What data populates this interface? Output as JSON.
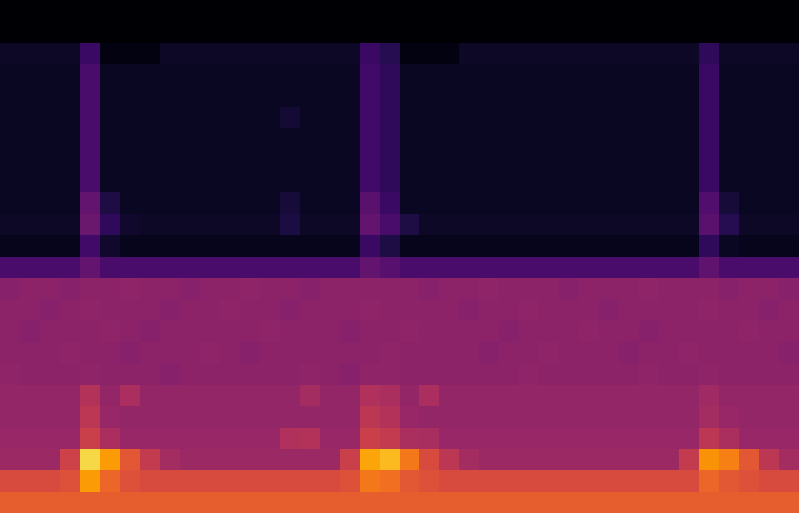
{
  "chart_data": {
    "type": "heatmap",
    "tick_labels": false,
    "color_range": [
      0,
      100
    ],
    "cells": [
      [
        0,
        0,
        0,
        0,
        0,
        0,
        0,
        0,
        0,
        0,
        0,
        0,
        0,
        0,
        0,
        0,
        0,
        0,
        0,
        0,
        0,
        0,
        0,
        0,
        0,
        0,
        0,
        0,
        0,
        0,
        0,
        0,
        0,
        0,
        0,
        0,
        0,
        0,
        0,
        0
      ],
      [
        0,
        0,
        0,
        0,
        0,
        0,
        0,
        0,
        0,
        0,
        0,
        0,
        0,
        0,
        0,
        0,
        0,
        0,
        0,
        0,
        0,
        0,
        0,
        0,
        0,
        0,
        0,
        0,
        0,
        0,
        0,
        0,
        0,
        0,
        0,
        0,
        0,
        0,
        0,
        0
      ],
      [
        7,
        7,
        7,
        7,
        18,
        3,
        3,
        3,
        7,
        7,
        7,
        7,
        7,
        7,
        7,
        7,
        7,
        7,
        18,
        14,
        3,
        3,
        3,
        7,
        7,
        7,
        7,
        7,
        7,
        7,
        7,
        7,
        7,
        7,
        7,
        16,
        7,
        7,
        7,
        7
      ],
      [
        6,
        6,
        6,
        6,
        22,
        6,
        6,
        6,
        6,
        6,
        6,
        6,
        6,
        6,
        6,
        6,
        6,
        6,
        20,
        16,
        6,
        6,
        6,
        6,
        6,
        6,
        6,
        6,
        6,
        6,
        6,
        6,
        6,
        6,
        6,
        18,
        6,
        6,
        6,
        6
      ],
      [
        6,
        6,
        6,
        6,
        22,
        6,
        6,
        6,
        6,
        6,
        6,
        6,
        6,
        6,
        6,
        6,
        6,
        6,
        20,
        16,
        6,
        6,
        6,
        6,
        6,
        6,
        6,
        6,
        6,
        6,
        6,
        6,
        6,
        6,
        6,
        18,
        6,
        6,
        6,
        6
      ],
      [
        6,
        6,
        6,
        6,
        22,
        6,
        6,
        6,
        6,
        6,
        6,
        6,
        6,
        6,
        9,
        6,
        6,
        6,
        20,
        16,
        6,
        6,
        6,
        6,
        6,
        6,
        6,
        6,
        6,
        6,
        6,
        6,
        6,
        6,
        6,
        18,
        6,
        6,
        6,
        6
      ],
      [
        6,
        6,
        6,
        6,
        22,
        6,
        6,
        6,
        6,
        6,
        6,
        6,
        6,
        6,
        6,
        6,
        6,
        6,
        20,
        16,
        6,
        6,
        6,
        6,
        6,
        6,
        6,
        6,
        6,
        6,
        6,
        6,
        6,
        6,
        6,
        18,
        6,
        6,
        6,
        6
      ],
      [
        6,
        6,
        6,
        6,
        22,
        6,
        6,
        6,
        6,
        6,
        6,
        6,
        6,
        6,
        6,
        6,
        6,
        6,
        20,
        16,
        6,
        6,
        6,
        6,
        6,
        6,
        6,
        6,
        6,
        6,
        6,
        6,
        6,
        6,
        6,
        18,
        6,
        6,
        6,
        6
      ],
      [
        6,
        6,
        6,
        6,
        22,
        6,
        6,
        6,
        6,
        6,
        6,
        6,
        6,
        6,
        6,
        6,
        6,
        6,
        20,
        16,
        6,
        6,
        6,
        6,
        6,
        6,
        6,
        6,
        6,
        6,
        6,
        6,
        6,
        6,
        6,
        18,
        6,
        6,
        6,
        6
      ],
      [
        6,
        6,
        6,
        6,
        28,
        12,
        6,
        6,
        6,
        6,
        6,
        6,
        6,
        6,
        10,
        6,
        6,
        6,
        26,
        18,
        6,
        6,
        6,
        6,
        6,
        6,
        6,
        6,
        6,
        6,
        6,
        6,
        6,
        6,
        6,
        24,
        10,
        6,
        6,
        6
      ],
      [
        7,
        7,
        7,
        7,
        30,
        16,
        8,
        7,
        7,
        7,
        7,
        7,
        7,
        7,
        11,
        7,
        7,
        7,
        28,
        22,
        12,
        7,
        7,
        7,
        7,
        7,
        7,
        7,
        7,
        7,
        7,
        7,
        7,
        7,
        7,
        26,
        14,
        7,
        7,
        7
      ],
      [
        5,
        5,
        5,
        5,
        20,
        8,
        5,
        5,
        5,
        5,
        5,
        5,
        5,
        5,
        5,
        5,
        5,
        5,
        18,
        12,
        5,
        5,
        5,
        5,
        5,
        5,
        5,
        5,
        5,
        5,
        5,
        5,
        5,
        5,
        5,
        16,
        6,
        5,
        5,
        5
      ],
      [
        22,
        22,
        22,
        22,
        28,
        22,
        22,
        22,
        22,
        22,
        22,
        22,
        22,
        22,
        22,
        22,
        22,
        22,
        28,
        25,
        22,
        22,
        22,
        22,
        22,
        22,
        22,
        22,
        22,
        22,
        22,
        22,
        22,
        22,
        22,
        27,
        22,
        22,
        22,
        22
      ],
      [
        37,
        38,
        38,
        37,
        38,
        38,
        39,
        38,
        38,
        37,
        38,
        38,
        39,
        38,
        38,
        37,
        38,
        38,
        38,
        38,
        38,
        37,
        38,
        38,
        39,
        38,
        38,
        38,
        37,
        38,
        38,
        38,
        39,
        38,
        38,
        38,
        37,
        38,
        38,
        37
      ],
      [
        38,
        38,
        37,
        38,
        39,
        38,
        38,
        38,
        37,
        38,
        38,
        39,
        38,
        38,
        37,
        38,
        38,
        38,
        39,
        38,
        38,
        38,
        38,
        37,
        38,
        38,
        39,
        38,
        38,
        38,
        37,
        38,
        38,
        38,
        38,
        39,
        38,
        38,
        37,
        38
      ],
      [
        38,
        37,
        38,
        38,
        38,
        39,
        38,
        37,
        38,
        38,
        38,
        38,
        38,
        39,
        38,
        38,
        38,
        37,
        38,
        38,
        39,
        38,
        38,
        38,
        38,
        37,
        38,
        38,
        38,
        39,
        38,
        38,
        37,
        38,
        38,
        38,
        38,
        39,
        38,
        38
      ],
      [
        38,
        38,
        38,
        39,
        38,
        38,
        37,
        38,
        38,
        38,
        39,
        38,
        37,
        38,
        38,
        38,
        38,
        38,
        38,
        39,
        38,
        38,
        38,
        38,
        37,
        38,
        38,
        39,
        38,
        38,
        38,
        37,
        38,
        38,
        39,
        38,
        38,
        38,
        38,
        37
      ],
      [
        39,
        38,
        38,
        38,
        39,
        38,
        38,
        38,
        37,
        38,
        38,
        38,
        38,
        38,
        38,
        39,
        38,
        37,
        39,
        39,
        38,
        38,
        38,
        38,
        38,
        38,
        39,
        38,
        38,
        38,
        38,
        38,
        39,
        38,
        38,
        39,
        38,
        38,
        38,
        38
      ],
      [
        40,
        40,
        40,
        40,
        48,
        40,
        46,
        40,
        40,
        40,
        40,
        40,
        40,
        40,
        40,
        44,
        40,
        40,
        47,
        46,
        40,
        46,
        40,
        40,
        40,
        40,
        40,
        40,
        40,
        40,
        40,
        40,
        40,
        40,
        40,
        43,
        40,
        40,
        40,
        40
      ],
      [
        40,
        40,
        40,
        40,
        50,
        41,
        40,
        40,
        40,
        40,
        40,
        40,
        40,
        40,
        40,
        40,
        40,
        40,
        50,
        48,
        41,
        40,
        40,
        40,
        40,
        40,
        40,
        40,
        40,
        40,
        40,
        40,
        40,
        40,
        40,
        44,
        41,
        40,
        40,
        40
      ],
      [
        41,
        41,
        41,
        41,
        54,
        46,
        41,
        41,
        41,
        41,
        41,
        41,
        41,
        41,
        47,
        48,
        41,
        41,
        54,
        52,
        46,
        45,
        41,
        41,
        41,
        41,
        41,
        41,
        41,
        41,
        41,
        41,
        41,
        41,
        41,
        50,
        46,
        41,
        41,
        41
      ],
      [
        42,
        42,
        42,
        55,
        90,
        78,
        62,
        52,
        44,
        42,
        42,
        42,
        42,
        42,
        42,
        42,
        42,
        54,
        80,
        84,
        70,
        58,
        50,
        44,
        42,
        42,
        42,
        42,
        42,
        42,
        42,
        42,
        42,
        42,
        52,
        76,
        72,
        62,
        50,
        44
      ],
      [
        58,
        58,
        58,
        60,
        78,
        66,
        60,
        58,
        58,
        58,
        58,
        58,
        58,
        58,
        58,
        58,
        58,
        60,
        70,
        68,
        62,
        60,
        58,
        58,
        58,
        58,
        58,
        58,
        58,
        58,
        58,
        58,
        58,
        58,
        58,
        66,
        62,
        60,
        58,
        58
      ],
      [
        64,
        64,
        64,
        64,
        64,
        64,
        64,
        64,
        64,
        64,
        64,
        64,
        64,
        64,
        64,
        64,
        64,
        64,
        64,
        64,
        64,
        64,
        64,
        64,
        64,
        64,
        64,
        64,
        64,
        64,
        64,
        64,
        64,
        64,
        64,
        64,
        64,
        64,
        64,
        64
      ]
    ]
  }
}
